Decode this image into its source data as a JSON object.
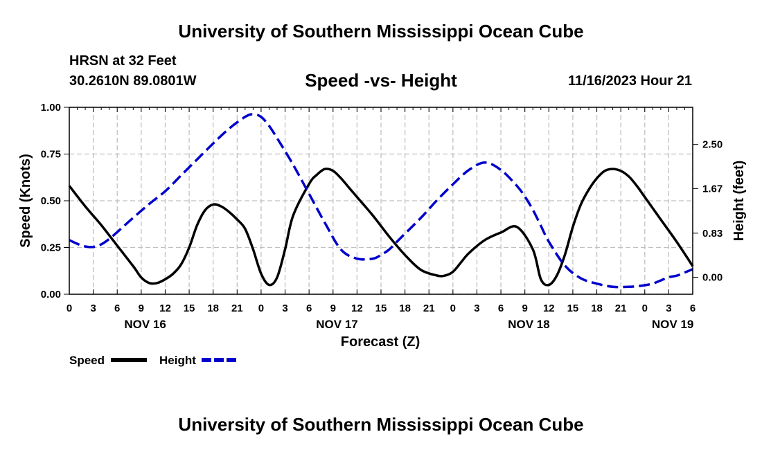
{
  "header": {
    "title": "University of Southern Mississippi Ocean Cube",
    "station": "HRSN at 32 Feet",
    "coords": "30.2610N  89.0801W",
    "subtitle": "Speed -vs- Height",
    "datetime": "11/16/2023 Hour 21"
  },
  "footer": {
    "title": "University of Southern Mississippi Ocean Cube"
  },
  "legend": {
    "speed_label": "Speed",
    "height_label": "Height"
  },
  "colors": {
    "speed": "#000000",
    "height": "#0000cc",
    "grid": "#c0c0c0"
  },
  "chart_data": {
    "type": "line",
    "xlabel": "Forecast (Z)",
    "ylabel_left": "Speed (Knots)",
    "ylabel_right": "Height (feet)",
    "x_range_hours": [
      0,
      78
    ],
    "x_tick_hours": [
      0,
      3,
      6,
      9,
      12,
      15,
      18,
      21,
      24,
      27,
      30,
      33,
      36,
      39,
      42,
      45,
      48,
      51,
      54,
      57,
      60,
      63,
      66,
      69,
      72,
      75,
      78
    ],
    "x_tick_labels": [
      "0",
      "3",
      "6",
      "9",
      "12",
      "15",
      "18",
      "21",
      "0",
      "3",
      "6",
      "9",
      "12",
      "15",
      "18",
      "21",
      "0",
      "3",
      "6",
      "9",
      "12",
      "15",
      "18",
      "21",
      "0",
      "3",
      "6"
    ],
    "date_labels": [
      {
        "hour": 9.5,
        "label": "NOV 16"
      },
      {
        "hour": 33.5,
        "label": "NOV 17"
      },
      {
        "hour": 57.5,
        "label": "NOV 18"
      },
      {
        "hour": 75.5,
        "label": "NOV 19"
      }
    ],
    "left_axis": {
      "range": [
        0,
        1
      ],
      "ticks": [
        0,
        0.25,
        0.5,
        0.75,
        1.0
      ],
      "tick_labels": [
        "0.00",
        "0.25",
        "0.50",
        "0.75",
        "1.00"
      ]
    },
    "right_axis": {
      "range": [
        -0.32,
        3.2
      ],
      "ticks": [
        0,
        0.83,
        1.67,
        2.5
      ],
      "tick_labels": [
        "0.00",
        "0.83",
        "1.67",
        "2.50"
      ]
    },
    "series": [
      {
        "name": "Speed",
        "axis": "left",
        "style": "solid",
        "x": [
          0,
          2,
          4,
          6,
          8,
          9,
          10,
          11,
          12,
          13,
          14,
          15,
          16,
          17,
          18,
          19,
          20,
          21,
          22,
          23,
          24,
          25,
          26,
          27,
          28,
          30,
          31,
          32,
          33,
          34,
          35,
          36,
          38,
          40,
          42,
          44,
          46,
          47,
          48,
          49,
          50,
          52,
          54,
          56,
          58,
          59,
          60,
          61,
          62,
          63,
          64,
          65,
          66,
          67,
          68,
          69,
          70,
          71,
          72,
          74,
          76,
          78
        ],
        "y": [
          0.58,
          0.47,
          0.37,
          0.26,
          0.15,
          0.09,
          0.06,
          0.06,
          0.08,
          0.11,
          0.16,
          0.25,
          0.37,
          0.45,
          0.48,
          0.47,
          0.44,
          0.4,
          0.35,
          0.24,
          0.11,
          0.05,
          0.09,
          0.24,
          0.42,
          0.59,
          0.64,
          0.67,
          0.66,
          0.62,
          0.57,
          0.52,
          0.42,
          0.31,
          0.21,
          0.13,
          0.1,
          0.1,
          0.12,
          0.17,
          0.22,
          0.29,
          0.33,
          0.36,
          0.24,
          0.08,
          0.05,
          0.1,
          0.21,
          0.36,
          0.48,
          0.56,
          0.62,
          0.66,
          0.67,
          0.66,
          0.63,
          0.58,
          0.52,
          0.4,
          0.28,
          0.15
        ]
      },
      {
        "name": "Height",
        "axis": "right",
        "style": "dashed",
        "x": [
          0,
          1,
          2,
          3,
          4,
          5,
          6,
          8,
          10,
          12,
          14,
          16,
          18,
          20,
          22,
          23,
          24,
          25,
          26,
          28,
          30,
          32,
          34,
          36,
          38,
          39,
          40,
          41,
          42,
          44,
          46,
          48,
          50,
          52,
          54,
          56,
          57,
          58,
          59,
          60,
          62,
          64,
          66,
          68,
          70,
          71,
          72,
          73,
          74,
          75,
          76,
          77,
          78
        ],
        "y": [
          0.7,
          0.63,
          0.58,
          0.57,
          0.62,
          0.72,
          0.85,
          1.12,
          1.38,
          1.62,
          1.92,
          2.22,
          2.52,
          2.8,
          3.02,
          3.07,
          3.02,
          2.85,
          2.62,
          2.12,
          1.57,
          1.02,
          0.52,
          0.35,
          0.35,
          0.42,
          0.52,
          0.67,
          0.82,
          1.12,
          1.45,
          1.75,
          2.02,
          2.16,
          2.02,
          1.72,
          1.52,
          1.27,
          0.97,
          0.67,
          0.22,
          -0.02,
          -0.12,
          -0.18,
          -0.18,
          -0.17,
          -0.15,
          -0.12,
          -0.06,
          0.0,
          0.03,
          0.09,
          0.15
        ]
      }
    ]
  }
}
